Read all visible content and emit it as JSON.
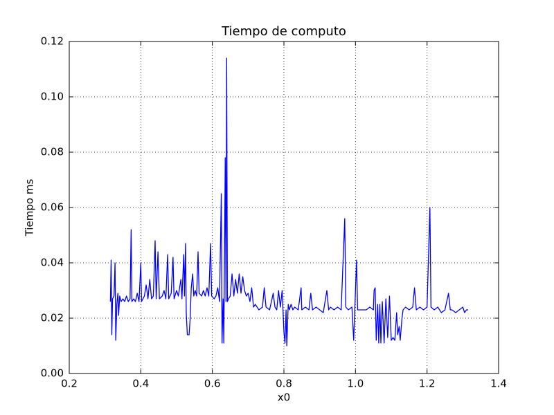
{
  "chart_data": {
    "type": "line",
    "title": "Tiempo de computo",
    "x_label": "x0",
    "y_label": "Tiempo ms",
    "grid": true,
    "xlim": [
      0.2,
      1.4
    ],
    "ylim": [
      0,
      0.12
    ],
    "xticks": [
      0.2,
      0.4,
      0.6,
      0.8,
      {
        "value": 1,
        "label": "1.0"
      },
      1.2,
      1.4
    ],
    "yticks": [
      {
        "value": 0,
        "label": "0.00"
      },
      0.02,
      0.04,
      0.06,
      0.08,
      {
        "value": 0.1,
        "label": "0.10"
      },
      0.12
    ],
    "series": [
      {
        "color": "#0000ff",
        "x": [
          0.315,
          0.317,
          0.319,
          0.321,
          0.325,
          0.328,
          0.33,
          0.333,
          0.336,
          0.338,
          0.341,
          0.345,
          0.35,
          0.355,
          0.36,
          0.365,
          0.37,
          0.373,
          0.375,
          0.38,
          0.385,
          0.39,
          0.395,
          0.4,
          0.402,
          0.41,
          0.415,
          0.42,
          0.425,
          0.43,
          0.435,
          0.44,
          0.443,
          0.448,
          0.452,
          0.46,
          0.465,
          0.47,
          0.475,
          0.478,
          0.485,
          0.49,
          0.493,
          0.5,
          0.505,
          0.512,
          0.515,
          0.52,
          0.522,
          0.525,
          0.527,
          0.53,
          0.535,
          0.538,
          0.541,
          0.545,
          0.548,
          0.552,
          0.556,
          0.56,
          0.563,
          0.57,
          0.575,
          0.58,
          0.585,
          0.59,
          0.595,
          0.598,
          0.605,
          0.61,
          0.615,
          0.62,
          0.625,
          0.627,
          0.63,
          0.632,
          0.636,
          0.638,
          0.64,
          0.642,
          0.645,
          0.65,
          0.655,
          0.66,
          0.665,
          0.67,
          0.675,
          0.68,
          0.685,
          0.69,
          0.695,
          0.7,
          0.705,
          0.71,
          0.715,
          0.72,
          0.73,
          0.74,
          0.745,
          0.75,
          0.76,
          0.77,
          0.775,
          0.78,
          0.785,
          0.79,
          0.795,
          0.8,
          0.803,
          0.806,
          0.808,
          0.812,
          0.815,
          0.82,
          0.825,
          0.83,
          0.84,
          0.848,
          0.85,
          0.86,
          0.87,
          0.875,
          0.88,
          0.89,
          0.9,
          0.91,
          0.92,
          0.925,
          0.93,
          0.94,
          0.95,
          0.96,
          0.97,
          0.973,
          0.98,
          0.99,
          0.995,
          0.998,
          1.003,
          1.006,
          1.02,
          1.03,
          1.04,
          1.05,
          1.052,
          1.055,
          1.058,
          1.062,
          1.065,
          1.068,
          1.071,
          1.075,
          1.08,
          1.085,
          1.09,
          1.095,
          1.1,
          1.105,
          1.11,
          1.115,
          1.118,
          1.122,
          1.125,
          1.13,
          1.133,
          1.14,
          1.15,
          1.16,
          1.165,
          1.17,
          1.18,
          1.19,
          1.2,
          1.208,
          1.211,
          1.22,
          1.23,
          1.24,
          1.25,
          1.26,
          1.265,
          1.27,
          1.28,
          1.29,
          1.3,
          1.305,
          1.31,
          1.315
        ],
        "values": [
          0.026,
          0.041,
          0.014,
          0.027,
          0.028,
          0.04,
          0.012,
          0.025,
          0.029,
          0.021,
          0.028,
          0.026,
          0.027,
          0.026,
          0.028,
          0.026,
          0.027,
          0.052,
          0.026,
          0.027,
          0.026,
          0.029,
          0.026,
          0.04,
          0.026,
          0.028,
          0.032,
          0.027,
          0.034,
          0.027,
          0.028,
          0.048,
          0.027,
          0.044,
          0.027,
          0.028,
          0.03,
          0.027,
          0.043,
          0.027,
          0.029,
          0.042,
          0.027,
          0.03,
          0.028,
          0.034,
          0.027,
          0.043,
          0.028,
          0.047,
          0.022,
          0.014,
          0.014,
          0.02,
          0.031,
          0.036,
          0.028,
          0.03,
          0.028,
          0.044,
          0.029,
          0.028,
          0.03,
          0.028,
          0.031,
          0.028,
          0.047,
          0.028,
          0.027,
          0.028,
          0.031,
          0.026,
          0.065,
          0.011,
          0.027,
          0.011,
          0.078,
          0.026,
          0.114,
          0.026,
          0.027,
          0.028,
          0.036,
          0.028,
          0.034,
          0.029,
          0.036,
          0.029,
          0.035,
          0.03,
          0.028,
          0.029,
          0.026,
          0.031,
          0.024,
          0.025,
          0.023,
          0.024,
          0.031,
          0.024,
          0.023,
          0.029,
          0.024,
          0.023,
          0.03,
          0.024,
          0.03,
          0.015,
          0.011,
          0.023,
          0.01,
          0.025,
          0.023,
          0.025,
          0.023,
          0.024,
          0.023,
          0.031,
          0.023,
          0.024,
          0.023,
          0.029,
          0.023,
          0.024,
          0.023,
          0.022,
          0.03,
          0.023,
          0.024,
          0.023,
          0.024,
          0.023,
          0.056,
          0.024,
          0.023,
          0.024,
          0.012,
          0.023,
          0.041,
          0.023,
          0.023,
          0.023,
          0.024,
          0.023,
          0.03,
          0.031,
          0.012,
          0.025,
          0.011,
          0.025,
          0.011,
          0.026,
          0.011,
          0.027,
          0.013,
          0.028,
          0.012,
          0.013,
          0.012,
          0.022,
          0.014,
          0.017,
          0.012,
          0.02,
          0.023,
          0.024,
          0.023,
          0.024,
          0.031,
          0.023,
          0.024,
          0.023,
          0.024,
          0.06,
          0.024,
          0.023,
          0.024,
          0.022,
          0.023,
          0.029,
          0.023,
          0.023,
          0.022,
          0.023,
          0.024,
          0.022,
          0.023,
          0.023
        ]
      }
    ]
  }
}
